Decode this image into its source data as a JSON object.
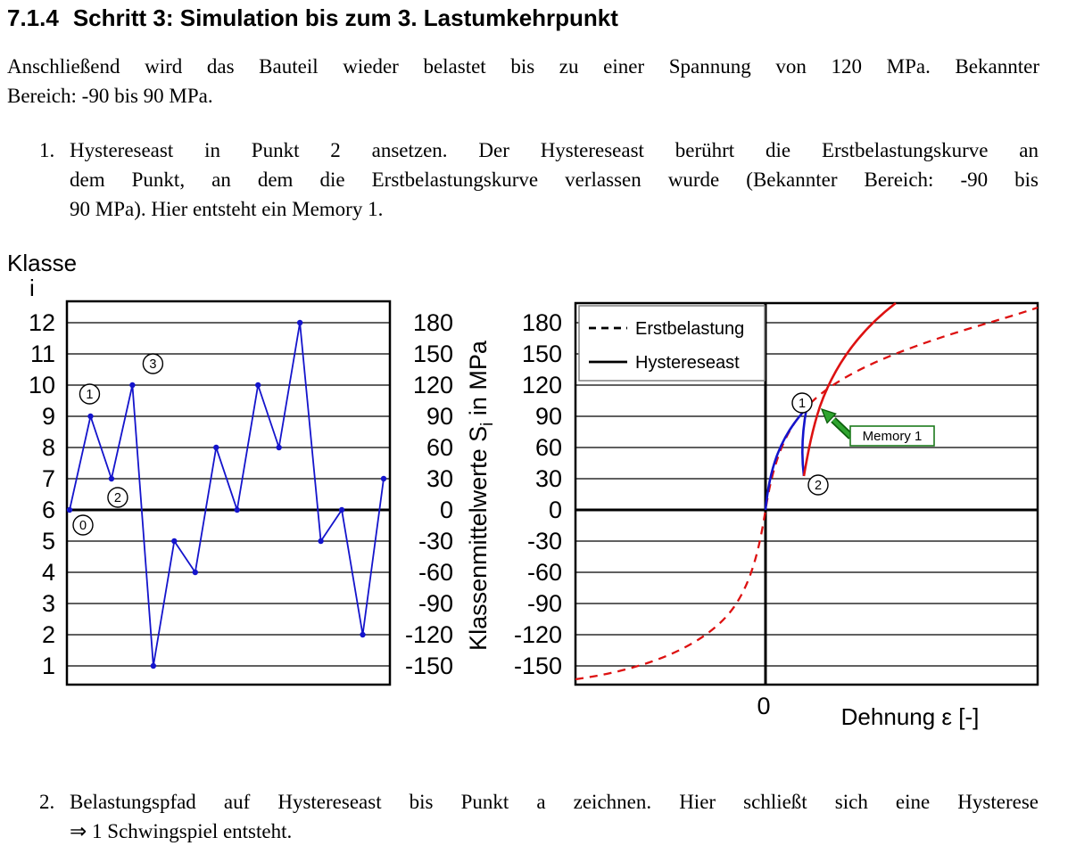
{
  "document": {
    "heading": {
      "number": "7.1.4",
      "title": "Schritt 3: Simulation bis zum 3. Lastumkehrpunkt"
    },
    "intro_lines": [
      "Anschließend wird das Bauteil wieder belastet bis zu einer Spannung von 120 MPa. Bekannter",
      "Bereich: -90 bis 90 MPa."
    ],
    "items": [
      {
        "marker": "1.",
        "lines": [
          "Hystereseast in Punkt 2 ansetzen. Der Hystereseast berührt die Erstbelastungskurve an",
          "dem Punkt, an dem die Erstbelastungskurve verlassen wurde (Bekannter Bereich: -90 bis",
          "90 MPa). Hier entsteht ein Memory 1."
        ]
      },
      {
        "marker": "2.",
        "lines": [
          "Belastungspfad auf Hystereseast bis Punkt a zeichnen. Hier schließt sich eine Hysterese",
          "⇒ 1 Schwingspiel entsteht."
        ]
      }
    ]
  },
  "figure": {
    "left_ylabel_line1": "Klasse",
    "left_ylabel_line2": "i",
    "ylabel_pre": "Klassenmittelwerte S",
    "ylabel_sub": "i",
    "ylabel_post": " in MPa",
    "x_zero_label": "0",
    "xlabel": "Dehnung ε [-]",
    "memory_label": "Memory 1",
    "colors": {
      "sequence_blue": "#1414cc",
      "curve_red": "#dd1111",
      "memory_green": "#1c7a1c"
    }
  },
  "chart_data": [
    {
      "type": "line",
      "name": "lastfolge",
      "ylabel_left": "Klasse i",
      "ylabel_right": "Klassenmittelwerte S_i in MPa",
      "y_classes_range": [
        1,
        12
      ],
      "y_mpa_range": [
        -150,
        180
      ],
      "y_mpa_step": 30,
      "grid": "horizontal",
      "zero_line_mpa": 0,
      "x": [
        0,
        1,
        2,
        3,
        4,
        5,
        6,
        7,
        8,
        9,
        10,
        11,
        12,
        13,
        14,
        15
      ],
      "series": [
        {
          "name": "Lastfolge",
          "classes": [
            6,
            9,
            7,
            10,
            1,
            5,
            4,
            8,
            6,
            10,
            8,
            12,
            5,
            6,
            2,
            7
          ],
          "mpa": [
            0,
            90,
            30,
            120,
            -150,
            -30,
            -60,
            60,
            0,
            120,
            60,
            180,
            -30,
            0,
            -120,
            30
          ],
          "color": "#1414cc"
        }
      ],
      "labeled_points": [
        {
          "label": "0",
          "index": 0,
          "mpa": 0
        },
        {
          "label": "1",
          "index": 1,
          "mpa": 90
        },
        {
          "label": "2",
          "index": 2,
          "mpa": 30
        },
        {
          "label": "3",
          "index": 3,
          "mpa": 120
        }
      ]
    },
    {
      "type": "line",
      "name": "spannung-dehnung",
      "xlabel": "Dehnung ε [-]",
      "ylabel": "Klassenmittelwerte S_i in MPa",
      "x_ticks": [
        "0"
      ],
      "y_mpa_range": [
        -150,
        180
      ],
      "y_mpa_step": 30,
      "grid": "horizontal",
      "legend": [
        "Erstbelastung",
        "Hystereseast"
      ],
      "legend_position": "top-left",
      "legend_styles": [
        "dashed",
        "solid"
      ],
      "curves": [
        {
          "name": "erstbelastung",
          "style": "dashed",
          "color": "#dd1111",
          "desc": "S-förmige Erstbelastungskurve durch den Ursprung"
        },
        {
          "name": "belastung-0-zu-1",
          "style": "solid",
          "color": "#1414cc",
          "from_mpa": 0,
          "to_mpa": 90
        },
        {
          "name": "entlastung-1-zu-2",
          "style": "solid",
          "color": "#1414cc",
          "from_mpa": 90,
          "to_mpa": 30
        },
        {
          "name": "hystereseast-ab-2",
          "style": "solid",
          "color": "#dd1111",
          "from_mpa": 30,
          "touches_erstbelastung_at_mpa": 90
        }
      ],
      "labeled_points": [
        {
          "label": "1",
          "mpa": 90
        },
        {
          "label": "2",
          "mpa": 30
        }
      ],
      "annotations": [
        {
          "text": "Memory 1",
          "color": "#1c7a1c",
          "at_mpa": 90
        }
      ]
    }
  ]
}
